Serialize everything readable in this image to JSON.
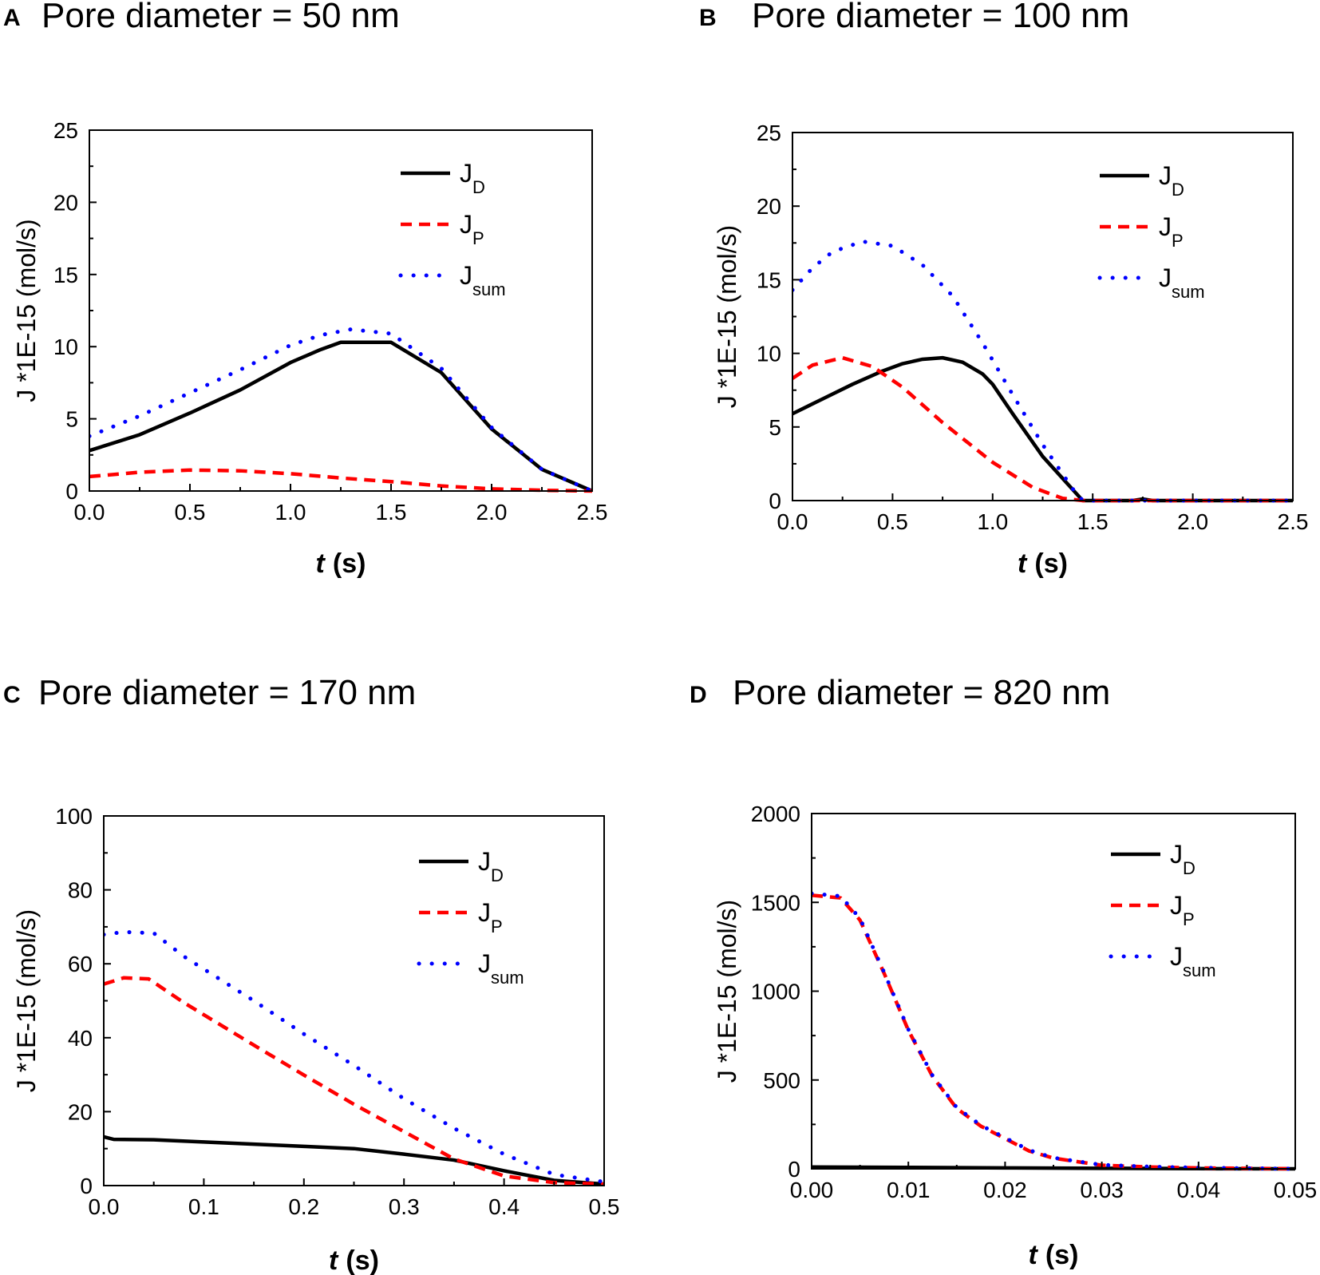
{
  "chart_data": [
    {
      "type": "line",
      "panel": "A",
      "title": "Pore diameter = 50 nm",
      "ylabel": "J *1E-15 (mol/s)",
      "xlabel_italic": "t",
      "xlabel_unit": "(s)",
      "xlim": [
        0,
        2.5
      ],
      "ylim": [
        0,
        25
      ],
      "xticks": [
        "0.0",
        "0.5",
        "1.0",
        "1.5",
        "2.0",
        "2.5"
      ],
      "yticks": [
        "0",
        "5",
        "10",
        "15",
        "20",
        "25"
      ],
      "legend": [
        {
          "main": "J",
          "sub": "D"
        },
        {
          "main": "J",
          "sub": "P"
        },
        {
          "main": "J",
          "sub": "sum"
        }
      ],
      "series": [
        {
          "name": "JD",
          "style": "solid",
          "color": "#000000",
          "x": [
            0,
            0.25,
            0.5,
            0.75,
            1.0,
            1.15,
            1.25,
            1.5,
            1.75,
            2.0,
            2.25,
            2.5
          ],
          "y": [
            2.8,
            3.9,
            5.4,
            7.0,
            8.9,
            9.8,
            10.3,
            10.3,
            8.2,
            4.3,
            1.5,
            0.0
          ]
        },
        {
          "name": "JP",
          "style": "dashed",
          "color": "#ff0000",
          "x": [
            0,
            0.25,
            0.5,
            0.75,
            1.0,
            1.25,
            1.5,
            1.75,
            2.0,
            2.25,
            2.5
          ],
          "y": [
            1.0,
            1.3,
            1.45,
            1.4,
            1.2,
            0.9,
            0.65,
            0.35,
            0.15,
            0.05,
            0.0
          ]
        },
        {
          "name": "Jsum",
          "style": "dotted",
          "color": "#0000ff",
          "x": [
            0,
            0.25,
            0.5,
            0.75,
            1.0,
            1.15,
            1.3,
            1.5,
            1.75,
            2.0,
            2.25,
            2.5
          ],
          "y": [
            3.8,
            5.2,
            6.8,
            8.4,
            10.1,
            10.8,
            11.2,
            10.9,
            8.5,
            4.4,
            1.5,
            0.0
          ]
        }
      ]
    },
    {
      "type": "line",
      "panel": "B",
      "title": "Pore diameter = 100 nm",
      "ylabel": "J *1E-15 (mol/s)",
      "xlabel_italic": "t",
      "xlabel_unit": "(s)",
      "xlim": [
        0,
        2.5
      ],
      "ylim": [
        0,
        25
      ],
      "xticks": [
        "0.0",
        "0.5",
        "1.0",
        "1.5",
        "2.0",
        "2.5"
      ],
      "yticks": [
        "0",
        "5",
        "10",
        "15",
        "20",
        "25"
      ],
      "legend": [
        {
          "main": "J",
          "sub": "D"
        },
        {
          "main": "J",
          "sub": "P"
        },
        {
          "main": "J",
          "sub": "sum"
        }
      ],
      "series": [
        {
          "name": "JD",
          "style": "solid",
          "color": "#000000",
          "x": [
            0,
            0.15,
            0.3,
            0.45,
            0.55,
            0.65,
            0.75,
            0.85,
            0.95,
            1.0,
            1.1,
            1.25,
            1.45,
            1.5,
            1.7,
            1.75,
            1.8,
            2.0,
            2.5
          ],
          "y": [
            5.9,
            6.9,
            7.9,
            8.8,
            9.3,
            9.6,
            9.7,
            9.4,
            8.6,
            7.9,
            5.9,
            3.0,
            0.0,
            0.0,
            0.0,
            0.1,
            0.0,
            0.0,
            0.0
          ]
        },
        {
          "name": "JP",
          "style": "dashed",
          "color": "#ff0000",
          "x": [
            0,
            0.1,
            0.25,
            0.4,
            0.55,
            0.75,
            1.0,
            1.2,
            1.35,
            1.45,
            1.5,
            2.0,
            2.5
          ],
          "y": [
            8.3,
            9.2,
            9.7,
            9.1,
            7.7,
            5.3,
            2.6,
            0.9,
            0.15,
            0.0,
            0.0,
            0.0,
            0.0
          ]
        },
        {
          "name": "Jsum",
          "style": "dotted",
          "color": "#0000ff",
          "x": [
            0,
            0.1,
            0.2,
            0.35,
            0.5,
            0.65,
            0.8,
            0.95,
            1.1,
            1.25,
            1.4,
            1.45,
            1.5,
            2.0,
            2.5
          ],
          "y": [
            14.3,
            15.8,
            16.9,
            17.6,
            17.3,
            16.0,
            13.9,
            10.7,
            7.2,
            3.8,
            0.8,
            0.0,
            0.0,
            0.0,
            0.0
          ]
        }
      ]
    },
    {
      "type": "line",
      "panel": "C",
      "title": "Pore diameter = 170 nm",
      "ylabel": "J *1E-15 (mol/s)",
      "xlabel_italic": "t",
      "xlabel_unit": "(s)",
      "xlim": [
        0,
        0.5
      ],
      "ylim": [
        0,
        100
      ],
      "xticks": [
        "0.0",
        "0.1",
        "0.2",
        "0.3",
        "0.4",
        "0.5"
      ],
      "yticks": [
        "0",
        "20",
        "40",
        "60",
        "80",
        "100"
      ],
      "legend": [
        {
          "main": "J",
          "sub": "D"
        },
        {
          "main": "J",
          "sub": "P"
        },
        {
          "main": "J",
          "sub": "sum"
        }
      ],
      "series": [
        {
          "name": "JD",
          "style": "solid",
          "color": "#000000",
          "x": [
            0,
            0.01,
            0.05,
            0.1,
            0.15,
            0.2,
            0.25,
            0.3,
            0.35,
            0.4,
            0.45,
            0.5
          ],
          "y": [
            13.2,
            12.5,
            12.4,
            11.8,
            11.2,
            10.6,
            10.0,
            8.5,
            6.9,
            4.0,
            1.4,
            0.4
          ]
        },
        {
          "name": "JP",
          "style": "dashed",
          "color": "#ff0000",
          "x": [
            0,
            0.02,
            0.045,
            0.08,
            0.15,
            0.2,
            0.25,
            0.3,
            0.35,
            0.4,
            0.45,
            0.5
          ],
          "y": [
            54.5,
            56.2,
            55.9,
            49.5,
            38.0,
            29.9,
            22.0,
            14.6,
            7.2,
            2.6,
            0.8,
            0.4
          ]
        },
        {
          "name": "Jsum",
          "style": "dotted",
          "color": "#0000ff",
          "x": [
            0,
            0.02,
            0.05,
            0.08,
            0.15,
            0.2,
            0.25,
            0.3,
            0.35,
            0.4,
            0.45,
            0.5
          ],
          "y": [
            67.9,
            68.6,
            68.3,
            62.0,
            50.0,
            41.0,
            32.5,
            23.5,
            15.5,
            8.5,
            3.0,
            1.0
          ]
        }
      ]
    },
    {
      "type": "line",
      "panel": "D",
      "title": "Pore diameter = 820 nm",
      "ylabel": "J *1E-15 (mol/s)",
      "xlabel_italic": "t",
      "xlabel_unit": "(s)",
      "xlim": [
        0,
        0.05
      ],
      "ylim": [
        0,
        2000
      ],
      "xticks": [
        "0.00",
        "0.01",
        "0.02",
        "0.03",
        "0.04",
        "0.05"
      ],
      "yticks": [
        "0",
        "500",
        "1000",
        "1500",
        "2000"
      ],
      "legend": [
        {
          "main": "J",
          "sub": "D"
        },
        {
          "main": "J",
          "sub": "P"
        },
        {
          "main": "J",
          "sub": "sum"
        }
      ],
      "series": [
        {
          "name": "JD",
          "style": "solid",
          "color": "#000000",
          "x": [
            0,
            0.01,
            0.02,
            0.03,
            0.04,
            0.05
          ],
          "y": [
            10,
            8,
            5,
            3,
            1,
            0
          ]
        },
        {
          "name": "JP",
          "style": "dashed",
          "color": "#ff0000",
          "x": [
            0,
            0.003,
            0.005,
            0.0075,
            0.01,
            0.0125,
            0.015,
            0.0175,
            0.02,
            0.0225,
            0.025,
            0.03,
            0.035,
            0.04,
            0.05
          ],
          "y": [
            1540,
            1525,
            1400,
            1100,
            780,
            520,
            340,
            240,
            170,
            100,
            60,
            20,
            10,
            5,
            0
          ]
        },
        {
          "name": "Jsum",
          "style": "dotted",
          "color": "#0000ff",
          "x": [
            0,
            0.003,
            0.005,
            0.0075,
            0.01,
            0.0125,
            0.015,
            0.0175,
            0.02,
            0.0225,
            0.025,
            0.03,
            0.035,
            0.04,
            0.05
          ],
          "y": [
            1550,
            1535,
            1410,
            1105,
            785,
            525,
            345,
            245,
            175,
            105,
            62,
            22,
            12,
            6,
            0
          ]
        }
      ]
    }
  ]
}
